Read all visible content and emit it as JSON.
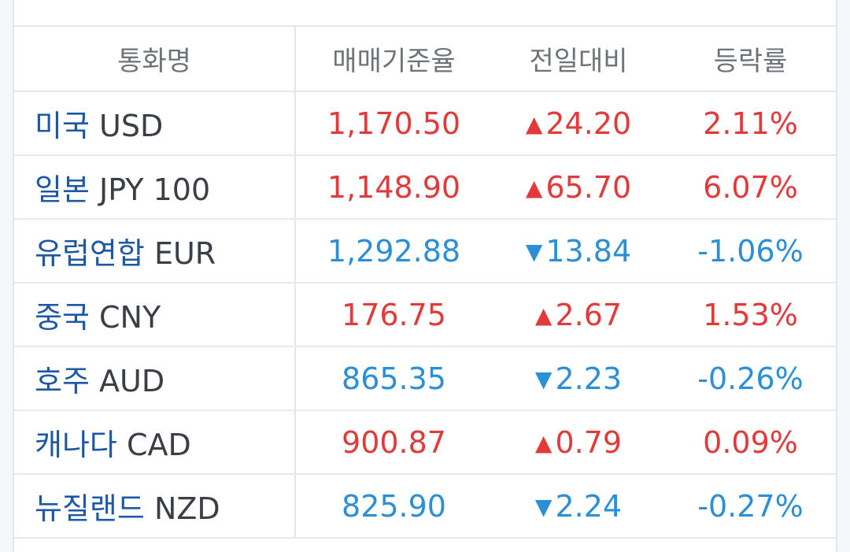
{
  "headers": {
    "currency": "통화명",
    "rate": "매매기준율",
    "change": "전일대비",
    "pct": "등락률"
  },
  "colors": {
    "up": "#e23a3a",
    "down": "#2b8fd8",
    "country": "#1d58a7"
  },
  "rows": [
    {
      "country": "미국",
      "code": "USD",
      "rate": "1,170.50",
      "direction": "up",
      "icon": "triangle-up-icon",
      "change": "24.20",
      "pct": "2.11%"
    },
    {
      "country": "일본",
      "code": "JPY 100",
      "rate": "1,148.90",
      "direction": "up",
      "icon": "triangle-up-icon",
      "change": "65.70",
      "pct": "6.07%"
    },
    {
      "country": "유럽연합",
      "code": "EUR",
      "rate": "1,292.88",
      "direction": "down",
      "icon": "triangle-down-icon",
      "change": "13.84",
      "pct": "-1.06%"
    },
    {
      "country": "중국",
      "code": "CNY",
      "rate": "176.75",
      "direction": "up",
      "icon": "triangle-up-icon",
      "change": "2.67",
      "pct": "1.53%"
    },
    {
      "country": "호주",
      "code": "AUD",
      "rate": "865.35",
      "direction": "down",
      "icon": "triangle-down-icon",
      "change": "2.23",
      "pct": "-0.26%"
    },
    {
      "country": "캐나다",
      "code": "CAD",
      "rate": "900.87",
      "direction": "up",
      "icon": "triangle-up-icon",
      "change": "0.79",
      "pct": "0.09%"
    },
    {
      "country": "뉴질랜드",
      "code": "NZD",
      "rate": "825.90",
      "direction": "down",
      "icon": "triangle-down-icon",
      "change": "2.24",
      "pct": "-0.27%"
    }
  ]
}
